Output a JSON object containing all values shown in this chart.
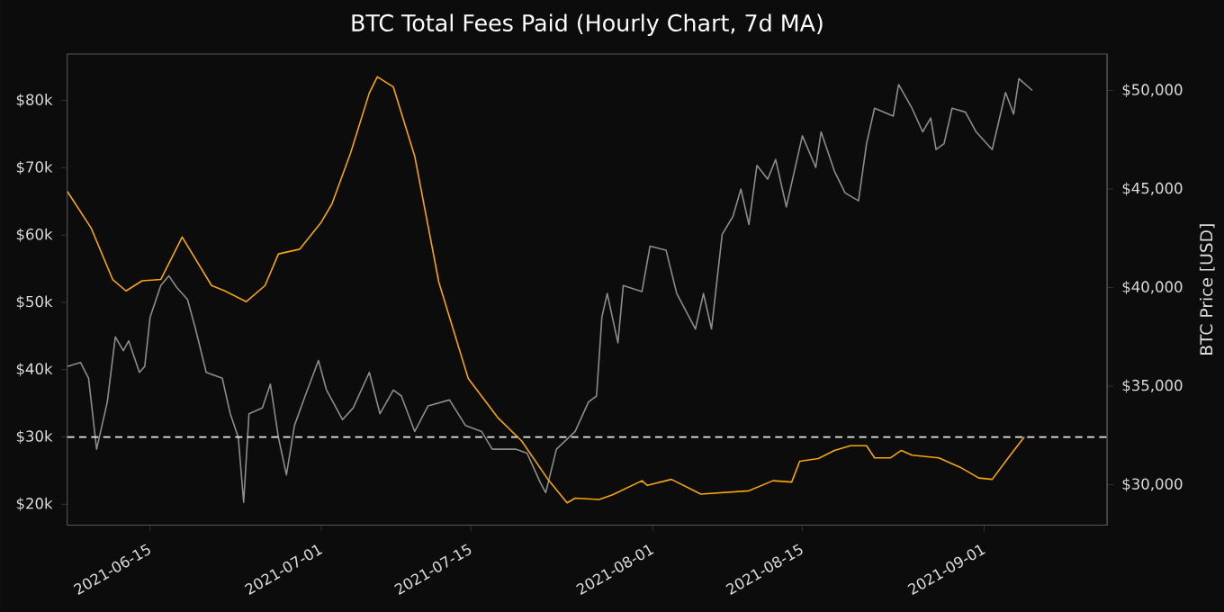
{
  "chart_data": {
    "type": "line",
    "title": "BTC Total Fees Paid (Hourly Chart, 7d MA)",
    "y2label": "BTC Price [USD]",
    "xlim": [
      "2021-06-07T06:00",
      "2021-09-12T12:00"
    ],
    "xticks": [
      "2021-06-15",
      "2021-07-01",
      "2021-07-15",
      "2021-08-01",
      "2021-08-15",
      "2021-09-01"
    ],
    "ylim": [
      16900,
      86900
    ],
    "yticks": [
      {
        "value": 20000,
        "label": "$20k"
      },
      {
        "value": 30000,
        "label": "$30k"
      },
      {
        "value": 40000,
        "label": "$40k"
      },
      {
        "value": 50000,
        "label": "$50k"
      },
      {
        "value": 60000,
        "label": "$60k"
      },
      {
        "value": 70000,
        "label": "$70k"
      },
      {
        "value": 80000,
        "label": "$80k"
      }
    ],
    "y2lim": [
      27950,
      51850
    ],
    "y2ticks": [
      {
        "value": 30000,
        "label": "$30,000"
      },
      {
        "value": 35000,
        "label": "$35,000"
      },
      {
        "value": 40000,
        "label": "$40,000"
      },
      {
        "value": 45000,
        "label": "$45,000"
      },
      {
        "value": 50000,
        "label": "$50,000"
      }
    ],
    "ref_lines": [
      {
        "axis": "y",
        "value": 30000,
        "color": "#e6e6e6",
        "line_style": "dashed"
      }
    ],
    "series": [
      {
        "axis": "y2",
        "color": "#8c8c8c",
        "x": [
          "2021-06-07T06:00",
          "2021-06-08T12:00",
          "2021-06-09T06:00",
          "2021-06-10T00:00",
          "2021-06-11T00:00",
          "2021-06-11T18:00",
          "2021-06-12T12:00",
          "2021-06-13T00:00",
          "2021-06-14T00:00",
          "2021-06-14T12:00",
          "2021-06-15T00:00",
          "2021-06-16T00:00",
          "2021-06-16T18:00",
          "2021-06-17T12:00",
          "2021-06-18T12:00",
          "2021-06-19T06:00",
          "2021-06-20T06:00",
          "2021-06-21T18:00",
          "2021-06-22T12:00",
          "2021-06-23T06:00",
          "2021-06-23T18:00",
          "2021-06-24T06:00",
          "2021-06-25T12:00",
          "2021-06-26T06:00",
          "2021-06-27T00:00",
          "2021-06-27T18:00",
          "2021-06-28T12:00",
          "2021-06-29T12:00",
          "2021-06-30T18:00",
          "2021-07-01T12:00",
          "2021-07-03T00:00",
          "2021-07-04T00:00",
          "2021-07-05T12:00",
          "2021-07-06T12:00",
          "2021-07-07T18:00",
          "2021-07-08T12:00",
          "2021-07-09T18:00",
          "2021-07-11T00:00",
          "2021-07-13T00:00",
          "2021-07-14T12:00",
          "2021-07-16T00:00",
          "2021-07-17T00:00",
          "2021-07-19T06:00",
          "2021-07-20T06:00",
          "2021-07-21T12:00",
          "2021-07-22T00:00",
          "2021-07-23T00:00",
          "2021-07-24T18:00",
          "2021-07-26T00:00",
          "2021-07-26T18:00",
          "2021-07-27T06:00",
          "2021-07-27T18:00",
          "2021-07-28T18:00",
          "2021-07-29T06:00",
          "2021-07-31T00:00",
          "2021-07-31T18:00",
          "2021-08-02T06:00",
          "2021-08-03T06:00",
          "2021-08-05T00:00",
          "2021-08-05T18:00",
          "2021-08-06T12:00",
          "2021-08-07T12:00",
          "2021-08-08T12:00",
          "2021-08-09T06:00",
          "2021-08-10T00:00",
          "2021-08-10T18:00",
          "2021-08-11T18:00",
          "2021-08-12T12:00",
          "2021-08-13T12:00",
          "2021-08-14T12:00",
          "2021-08-15T00:00",
          "2021-08-16T06:00",
          "2021-08-16T18:00",
          "2021-08-18T00:00",
          "2021-08-19T00:00",
          "2021-08-20T06:00",
          "2021-08-21T00:00",
          "2021-08-21T18:00",
          "2021-08-23T12:00",
          "2021-08-24T00:00",
          "2021-08-25T06:00",
          "2021-08-26T06:00",
          "2021-08-27T00:00",
          "2021-08-27T12:00",
          "2021-08-28T06:00",
          "2021-08-29T00:00",
          "2021-08-30T06:00",
          "2021-08-31T06:00",
          "2021-09-01T18:00",
          "2021-09-03T00:00",
          "2021-09-03T18:00",
          "2021-09-04T06:00",
          "2021-09-05T12:00"
        ],
        "values": [
          36000,
          36200,
          35400,
          31800,
          34200,
          37500,
          36800,
          37300,
          35700,
          36000,
          38500,
          40100,
          40600,
          40000,
          39400,
          37900,
          35700,
          35400,
          33600,
          32400,
          29100,
          33600,
          33900,
          35100,
          32400,
          30500,
          33000,
          34500,
          36300,
          34800,
          33300,
          33900,
          35700,
          33600,
          34800,
          34500,
          32700,
          34000,
          34300,
          33000,
          32700,
          31800,
          31800,
          31600,
          30100,
          29600,
          31800,
          32700,
          34200,
          34500,
          38500,
          39700,
          37200,
          40100,
          39800,
          42100,
          41900,
          39700,
          37900,
          39700,
          37900,
          42700,
          43600,
          45000,
          43200,
          46200,
          45500,
          46500,
          44100,
          46500,
          47700,
          46100,
          47900,
          45900,
          44800,
          44400,
          47300,
          49100,
          48700,
          50300,
          49100,
          47900,
          48600,
          47000,
          47300,
          49100,
          48900,
          47900,
          47000,
          49900,
          48800,
          50600,
          50000
        ]
      },
      {
        "axis": "y",
        "color": "#f7a50c",
        "x": [
          "2021-06-07T06:00",
          "2021-06-09T12:00",
          "2021-06-11T12:00",
          "2021-06-12T18:00",
          "2021-06-14T06:00",
          "2021-06-16T00:00",
          "2021-06-18T00:00",
          "2021-06-20T18:00",
          "2021-06-22T00:00",
          "2021-06-24T00:00",
          "2021-06-25T18:00",
          "2021-06-27T00:00",
          "2021-06-29T00:00",
          "2021-07-01T00:00",
          "2021-07-02T00:00",
          "2021-07-03T18:00",
          "2021-07-05T12:00",
          "2021-07-06T06:00",
          "2021-07-07T18:00",
          "2021-07-09T18:00",
          "2021-07-12T00:00",
          "2021-07-14T18:00",
          "2021-07-17T12:00",
          "2021-07-19T18:00",
          "2021-07-22T06:00",
          "2021-07-24T00:00",
          "2021-07-24T18:00",
          "2021-07-27T00:00",
          "2021-07-28T06:00",
          "2021-07-31T00:00",
          "2021-07-31T12:00",
          "2021-08-02T18:00",
          "2021-08-05T12:00",
          "2021-08-10T00:00",
          "2021-08-12T06:00",
          "2021-08-14T00:00",
          "2021-08-14T18:00",
          "2021-08-16T12:00",
          "2021-08-18T00:00",
          "2021-08-19T12:00",
          "2021-08-21T00:00",
          "2021-08-21T18:00",
          "2021-08-23T06:00",
          "2021-08-24T06:00",
          "2021-08-25T06:00",
          "2021-08-27T18:00",
          "2021-08-29T18:00",
          "2021-08-31T12:00",
          "2021-09-01T18:00",
          "2021-09-03T06:00",
          "2021-09-04T18:00"
        ],
        "values": [
          66500,
          61000,
          53400,
          51700,
          53200,
          53400,
          59700,
          52500,
          51700,
          50100,
          52500,
          57200,
          57900,
          61900,
          64600,
          72200,
          81100,
          83500,
          82000,
          71700,
          53000,
          38700,
          32900,
          29400,
          23600,
          20200,
          20900,
          20700,
          21400,
          23500,
          22800,
          23700,
          21500,
          22000,
          23500,
          23300,
          26400,
          26800,
          28000,
          28700,
          28700,
          26900,
          26900,
          28000,
          27300,
          26900,
          25500,
          23900,
          23700,
          26900,
          30000
        ]
      }
    ]
  }
}
